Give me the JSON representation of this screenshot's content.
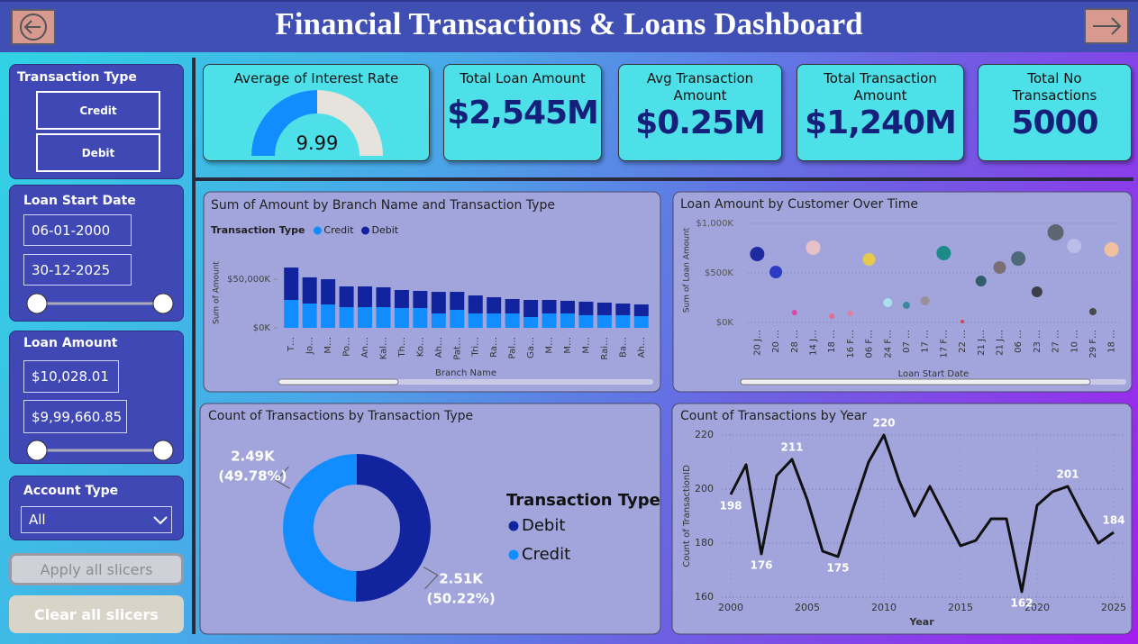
{
  "header": {
    "title": "Financial Transactions & Loans Dashboard"
  },
  "slicers": {
    "transaction_type": {
      "title": "Transaction Type",
      "options": [
        "Credit",
        "Debit"
      ]
    },
    "loan_start_date": {
      "title": "Loan Start Date",
      "from": "06-01-2000",
      "to": "30-12-2025"
    },
    "loan_amount": {
      "title": "Loan Amount",
      "from": "$10,028.01",
      "to": "$9,99,660.85"
    },
    "account_type": {
      "title": "Account Type",
      "selected": "All"
    }
  },
  "buttons": [
    "Apply all slicers",
    "Clear all slicers"
  ],
  "kpis": [
    {
      "label": "Average of Interest Rate",
      "value": "9.99"
    },
    {
      "label": "Total Loan Amount",
      "value": "$2,545M"
    },
    {
      "label": "Avg Transaction Amount",
      "value": "$0.25M"
    },
    {
      "label": "Total Transaction Amount",
      "value": "$1,240M"
    },
    {
      "label": "Total No Transactions",
      "value": "5000"
    }
  ],
  "chart_data": [
    {
      "type": "bar",
      "title": "Sum of Amount by Branch Name and Transaction Type",
      "legend_title": "Transaction Type",
      "x_label": "Branch Name",
      "y_label": "Sum of Amount",
      "categories": [
        "T…",
        "Jo…",
        "M…",
        "Po…",
        "An…",
        "Kal…",
        "Th…",
        "Ko…",
        "Ah…",
        "Pat…",
        "Tri…",
        "Ra…",
        "Pal…",
        "Ga…",
        "M…",
        "M…",
        "M…",
        "Rai…",
        "Ba…",
        "Ah…"
      ],
      "series": [
        {
          "name": "Credit",
          "color": "#118DFF",
          "values": [
            28700,
            25000,
            24000,
            21300,
            21300,
            21300,
            20400,
            20400,
            14800,
            18500,
            14800,
            14800,
            14800,
            11100,
            14800,
            14800,
            13000,
            13000,
            13000,
            12000
          ]
        },
        {
          "name": "Debit",
          "color": "#12239E",
          "values": [
            33300,
            26900,
            26000,
            21300,
            21300,
            20400,
            18500,
            17600,
            22200,
            18500,
            18500,
            16700,
            14800,
            17600,
            13900,
            13000,
            13900,
            12900,
            12000,
            12100
          ]
        }
      ],
      "ylim": [
        0,
        70000
      ],
      "yticks": [
        {
          "value": 0,
          "label": "$0K"
        },
        {
          "value": 50000,
          "label": "$50,000K"
        }
      ]
    },
    {
      "type": "scatter",
      "title": "Loan Amount by Customer Over Time",
      "x_label": "Loan Start Date",
      "y_label": "Sum of Loan Amount",
      "categories": [
        "20 J…",
        "20 …",
        "28 …",
        "14 J…",
        "18 …",
        "16 F…",
        "06 F…",
        "24 F…",
        "07 …",
        "17 …",
        "17 F…",
        "22 …",
        "21 J…",
        "21 J…",
        "06 …",
        "23 …",
        "27 …",
        "10 …",
        "29 F…",
        "18 …"
      ],
      "values": [
        691,
        509,
        100,
        755,
        64,
        91,
        636,
        200,
        173,
        218,
        700,
        9,
        418,
        555,
        645,
        309,
        909,
        773,
        109,
        736
      ],
      "sizes": [
        8,
        7,
        3,
        8,
        3,
        3,
        7,
        5,
        4,
        5,
        8,
        2,
        6,
        7,
        8,
        6,
        9,
        8,
        4,
        8
      ],
      "colors": [
        "#1d2aa0",
        "#2a3cc4",
        "#e044a7",
        "#e8c1c8",
        "#e66c8f",
        "#e57c9e",
        "#e6c84e",
        "#a8e0ec",
        "#3a8a9a",
        "#9a8f9a",
        "#1c8a88",
        "#d64550",
        "#2f5d6a",
        "#7a6f72",
        "#4d6a78",
        "#3b3f48",
        "#5d6670",
        "#b9bde8",
        "#4a4a4a",
        "#f0c0a0"
      ],
      "ylim": [
        0,
        1000
      ],
      "yticks": [
        {
          "value": 0,
          "label": "$0K"
        },
        {
          "value": 500,
          "label": "$500K"
        },
        {
          "value": 1000,
          "label": "$1,000K"
        }
      ],
      "grid": true
    },
    {
      "type": "donut",
      "title": "Count of Transactions by Transaction Type",
      "legend_title": "Transaction Type",
      "categories": [
        "Debit",
        "Credit"
      ],
      "colors": [
        "#12239E",
        "#118DFF"
      ],
      "values": [
        50.22,
        49.78
      ],
      "value_labels": [
        "(50.22%)",
        "(49.78%)"
      ],
      "counts": [
        2510,
        2490
      ],
      "count_labels": [
        "2.51K",
        "2.49K"
      ]
    },
    {
      "type": "line",
      "title": "Count of Transactions by Year",
      "x_label": "Year",
      "y_label": "Count of TransactionID",
      "x": [
        2000,
        2001,
        2002,
        2003,
        2004,
        2005,
        2006,
        2007,
        2008,
        2009,
        2010,
        2011,
        2012,
        2013,
        2014,
        2015,
        2016,
        2017,
        2018,
        2019,
        2020,
        2021,
        2022,
        2023,
        2024,
        2025
      ],
      "values": [
        198,
        209,
        176,
        205,
        211,
        196,
        177,
        175,
        193,
        210,
        220,
        203,
        190,
        201,
        190,
        179,
        181,
        189,
        189,
        162,
        194,
        199,
        201,
        190,
        180,
        184
      ],
      "show_labels": [
        true,
        false,
        true,
        false,
        true,
        false,
        false,
        true,
        false,
        false,
        true,
        false,
        false,
        false,
        false,
        false,
        false,
        false,
        false,
        true,
        false,
        false,
        true,
        false,
        false,
        true
      ],
      "color": "#111111",
      "xlim": [
        2000,
        2025
      ],
      "xticks": [
        2000,
        2005,
        2010,
        2015,
        2020,
        2025
      ],
      "ylim": [
        158,
        222
      ],
      "yticks": [
        160,
        180,
        200,
        220
      ],
      "grid": true
    }
  ]
}
